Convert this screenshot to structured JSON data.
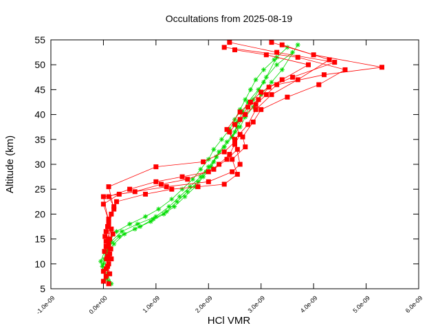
{
  "chart_data": {
    "type": "line",
    "title": "Occultations from 2025-08-19",
    "xlabel": "HCl VMR",
    "ylabel": "Altitude (km)",
    "xlim": [
      -1e-09,
      6e-09
    ],
    "ylim": [
      5,
      55
    ],
    "x_ticks": [
      -1e-09,
      0.0,
      1e-09,
      2e-09,
      3e-09,
      4e-09,
      5e-09,
      6e-09
    ],
    "x_tick_labels": [
      "-1.0e-09",
      "0.0e+00",
      "1.0e-09",
      "2.0e-09",
      "3.0e-09",
      "4.0e-09",
      "5.0e-09",
      "6.0e-09"
    ],
    "y_ticks": [
      5,
      10,
      15,
      20,
      25,
      30,
      35,
      40,
      45,
      50,
      55
    ],
    "y_tick_labels": [
      "5",
      "10",
      "15",
      "20",
      "25",
      "30",
      "35",
      "40",
      "45",
      "50",
      "55"
    ],
    "grid": false,
    "legend": false,
    "series": [
      {
        "color": "#00dd00",
        "marker": "plus",
        "profiles": [
          {
            "x": [
              1e-10,
              0.0,
              -5e-11,
              2e-11,
              1e-10,
              2.5e-10,
              5e-10,
              8e-10,
              1.05e-09,
              1.3e-09,
              1.5e-09,
              1.7e-09,
              1.85e-09,
              2e-09,
              2.1e-09,
              2.25e-09,
              2.4e-09,
              2.5e-09,
              2.6e-09,
              2.7e-09,
              2.8e-09,
              2.9e-09,
              3.05e-09,
              3.25e-09,
              3.5e-09
            ],
            "y": [
              6.5,
              8.5,
              10.5,
              12.5,
              14.5,
              16.5,
              18.0,
              19.5,
              21.0,
              23.0,
              25.0,
              27.0,
              29.0,
              31.0,
              33.0,
              35.0,
              37.0,
              39.0,
              41.0,
              43.0,
              45.0,
              47.0,
              49.0,
              51.0,
              53.5
            ]
          },
          {
            "x": [
              5e-11,
              -2e-11,
              5e-11,
              2e-10,
              4e-10,
              7e-10,
              9.5e-10,
              1.2e-09,
              1.4e-09,
              1.6e-09,
              1.8e-09,
              1.95e-09,
              2.1e-09,
              2.2e-09,
              2.35e-09,
              2.5e-09,
              2.55e-09,
              2.65e-09,
              2.75e-09,
              2.95e-09,
              3.1e-09,
              3.3e-09,
              3.6e-09
            ],
            "y": [
              7.0,
              9.5,
              12.0,
              14.0,
              16.0,
              17.5,
              19.0,
              20.5,
              22.5,
              24.5,
              26.5,
              28.5,
              30.5,
              32.5,
              34.5,
              36.5,
              38.5,
              40.5,
              42.5,
              45.0,
              47.5,
              50.0,
              52.5
            ]
          },
          {
            "x": [
              1.5e-10,
              8e-11,
              2e-11,
              1e-10,
              3e-10,
              6e-10,
              9e-10,
              1.15e-09,
              1.35e-09,
              1.55e-09,
              1.75e-09,
              1.9e-09,
              2.05e-09,
              2.15e-09,
              2.3e-09,
              2.45e-09,
              2.6e-09,
              2.7e-09,
              2.85e-09,
              3e-09,
              3.2e-09,
              3.4e-09,
              3.7e-09
            ],
            "y": [
              6.0,
              8.0,
              11.0,
              13.5,
              15.5,
              17.0,
              18.5,
              20.0,
              21.5,
              23.5,
              25.5,
              27.5,
              29.5,
              31.5,
              33.5,
              35.5,
              37.5,
              39.5,
              41.5,
              44.0,
              46.5,
              49.0,
              54.0
            ]
          },
          {
            "x": [
              0.0,
              5e-11,
              1.5e-10,
              3.5e-10,
              6.5e-10,
              1e-09,
              1.25e-09,
              1.45e-09,
              1.65e-09,
              1.85e-09,
              2e-09,
              2.15e-09,
              2.3e-09,
              2.45e-09,
              2.55e-09,
              2.7e-09,
              2.85e-09,
              3.05e-09,
              3.3e-09
            ],
            "y": [
              10.0,
              12.5,
              14.5,
              16.5,
              18.0,
              19.5,
              21.5,
              23.5,
              25.5,
              27.5,
              29.5,
              31.5,
              33.5,
              35.5,
              37.5,
              40.0,
              43.0,
              46.5,
              51.5
            ]
          }
        ]
      },
      {
        "color": "#ff0000",
        "marker": "square",
        "profiles": [
          {
            "x": [
              0.0,
              5e-11,
              8e-11,
              1e-10,
              5e-11,
              1e-10,
              2e-10,
              1e-10,
              5e-10,
              1e-09,
              1.5e-09,
              2e-09,
              2.2e-09,
              2.4e-09,
              2.5e-09,
              2.6e-09,
              2.5e-09,
              2.7e-09,
              2.9e-09,
              3.1e-09,
              3.3e-09,
              4.2e-09,
              5.3e-09,
              4e-09,
              3.2e-09
            ],
            "y": [
              6.5,
              9.0,
              11.5,
              14.0,
              16.5,
              19.0,
              21.5,
              23.5,
              25.0,
              26.5,
              27.5,
              28.5,
              30.0,
              32.0,
              34.0,
              36.0,
              38.0,
              40.0,
              42.0,
              44.0,
              46.0,
              48.0,
              49.5,
              52.0,
              54.5
            ]
          },
          {
            "x": [
              5e-11,
              1e-10,
              2e-11,
              1.2e-10,
              8e-11,
              1.5e-10,
              2.5e-10,
              8e-10,
              1.3e-09,
              1.8e-09,
              2.3e-09,
              2.55e-09,
              2.45e-09,
              2.7e-09,
              2.65e-09,
              2.85e-09,
              3e-09,
              3.5e-09,
              4.1e-09,
              4.6e-09,
              3.7e-09,
              2.3e-09
            ],
            "y": [
              7.5,
              10.0,
              12.5,
              15.0,
              17.5,
              20.0,
              22.5,
              24.0,
              25.0,
              25.5,
              26.0,
              28.0,
              31.0,
              33.5,
              35.5,
              38.5,
              41.0,
              43.5,
              46.0,
              49.0,
              51.5,
              53.5
            ]
          },
          {
            "x": [
              1e-10,
              0.0,
              1.5e-10,
              5e-11,
              1.8e-10,
              1e-10,
              0.0,
              6e-10,
              1.1e-09,
              1.6e-09,
              2.1e-09,
              2.35e-09,
              2.55e-09,
              2.4e-09,
              2.6e-09,
              2.75e-09,
              2.95e-09,
              3.15e-09,
              3.6e-09,
              4.4e-09,
              3.3e-09,
              2.4e-09
            ],
            "y": [
              6.0,
              8.5,
              11.0,
              13.5,
              16.0,
              18.5,
              23.5,
              24.5,
              26.0,
              27.0,
              29.0,
              31.0,
              33.0,
              36.5,
              39.0,
              41.5,
              43.0,
              45.5,
              47.5,
              50.5,
              52.5,
              54.5
            ]
          },
          {
            "x": [
              1.2e-10,
              6e-11,
              1.4e-10,
              3e-11,
              1e-10,
              2e-10,
              1e-10,
              1e-09,
              1.9e-09,
              2.3e-09,
              2.5e-09,
              2.35e-09,
              2.6e-09,
              2.8e-09,
              3e-09,
              3.4e-09,
              3.9e-09,
              3.1e-09,
              2.5e-09
            ],
            "y": [
              8.0,
              11.0,
              13.0,
              15.5,
              18.0,
              21.0,
              25.5,
              29.5,
              30.5,
              32.5,
              34.5,
              37.0,
              40.5,
              42.5,
              44.5,
              47.0,
              50.0,
              52.0,
              53.0
            ]
          },
          {
            "x": [
              8e-11,
              1.2e-10,
              5e-11,
              1.5e-10,
              0.0,
              3e-10,
              1.2e-09,
              2e-09,
              2.45e-09,
              2.6e-09,
              2.5e-09,
              2.75e-09,
              2.9e-09,
              3.2e-09,
              3.7e-09,
              4.3e-09,
              3.4e-09
            ],
            "y": [
              9.5,
              12.0,
              14.5,
              17.0,
              22.0,
              24.0,
              25.5,
              26.5,
              28.5,
              30.0,
              35.0,
              38.0,
              41.0,
              44.0,
              47.0,
              51.0,
              54.0
            ]
          }
        ]
      }
    ]
  }
}
